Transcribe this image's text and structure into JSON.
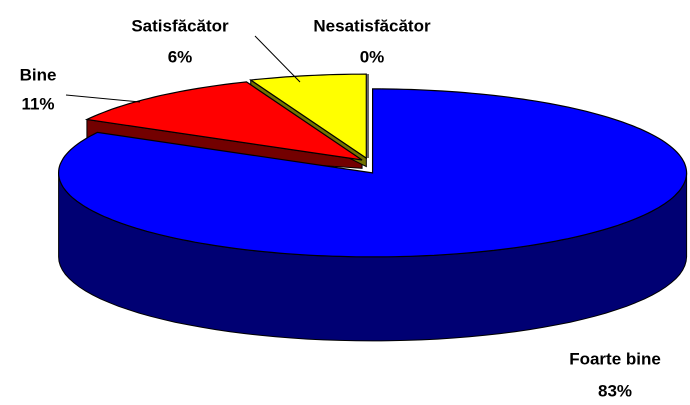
{
  "chart_data": {
    "type": "pie",
    "categories": [
      "Foarte bine",
      "Bine",
      "Satisfăcător",
      "Nesatisfăcător"
    ],
    "values": [
      83,
      11,
      6,
      0
    ],
    "value_labels": [
      "83%",
      "11%",
      "6%",
      "0%"
    ],
    "colors": [
      "#0000ff",
      "#ff0000",
      "#ffff00",
      "#ffffff"
    ]
  }
}
